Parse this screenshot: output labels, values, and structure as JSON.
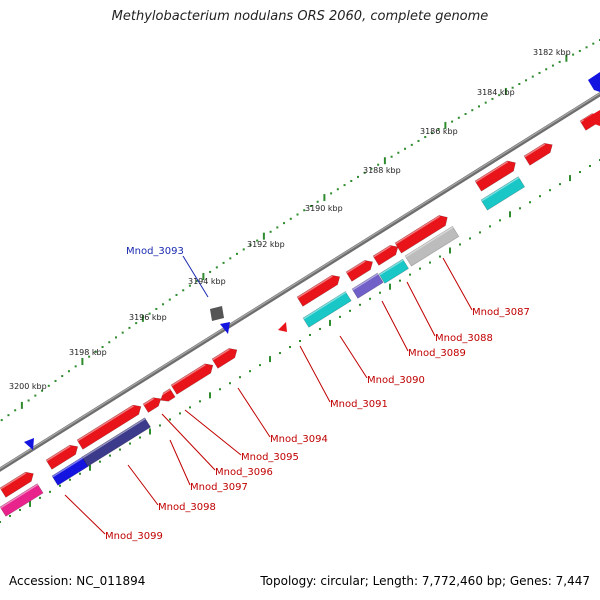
{
  "title": "Methylobacterium nodulans ORS 2060, complete genome",
  "footer": {
    "accession": "Accession: NC_011894",
    "summary": "Topology: circular; Length: 7,772,460 bp; Genes: 7,447"
  },
  "ticks": [
    "3182 kbp",
    "3184 kbp",
    "3186 kbp",
    "3188 kbp",
    "3190 kbp",
    "3192 kbp",
    "3194 kbp",
    "3196 kbp",
    "3198 kbp",
    "3200 kbp"
  ],
  "genes": [
    "Mnod_3087",
    "Mnod_3088",
    "Mnod_3089",
    "Mnod_3090",
    "Mnod_3091",
    "Mnod_3093",
    "Mnod_3094",
    "Mnod_3095",
    "Mnod_3096",
    "Mnod_3097",
    "Mnod_3098",
    "Mnod_3099"
  ],
  "colors": {
    "backbone": "#8a8a8a",
    "gene_red": "#e8141a",
    "gene_blue": "#1414e0",
    "gene_cyan": "#19c7c7",
    "gene_purple": "#7060c8",
    "gene_navy": "#3c3a8a",
    "gene_gray": "#bcbcbc",
    "gene_pink": "#e8238c",
    "tick_green": "#2e8b2e",
    "label_red": "#c00000",
    "label_blue": "#1a2ab0"
  }
}
